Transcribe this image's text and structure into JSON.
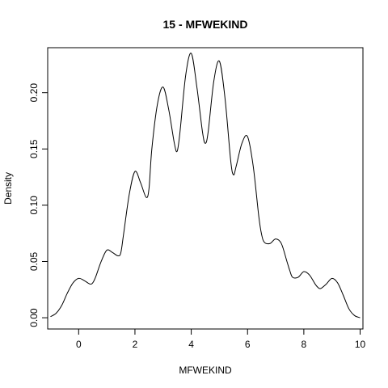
{
  "chart_data": {
    "type": "line",
    "title": "15 - MFWEKIND",
    "xlabel": "MFWEKIND",
    "ylabel": "Density",
    "xlim": [
      -1.1,
      10.1
    ],
    "ylim": [
      -0.01,
      0.24
    ],
    "x_ticks": [
      0,
      2,
      4,
      6,
      8,
      10
    ],
    "x_tick_labels": [
      "0",
      "2",
      "4",
      "6",
      "8",
      "10"
    ],
    "y_ticks": [
      0.0,
      0.05,
      0.1,
      0.15,
      0.2
    ],
    "y_tick_labels": [
      "0.00",
      "0.05",
      "0.10",
      "0.15",
      "0.20"
    ],
    "grid": false,
    "series": [
      {
        "x": [
          -1.0,
          -0.8,
          -0.6,
          -0.4,
          -0.2,
          0.0,
          0.2,
          0.4,
          0.5,
          0.6,
          0.8,
          1.0,
          1.2,
          1.4,
          1.5,
          1.6,
          1.8,
          2.0,
          2.2,
          2.4,
          2.5,
          2.6,
          2.8,
          3.0,
          3.2,
          3.4,
          3.5,
          3.6,
          3.8,
          4.0,
          4.2,
          4.4,
          4.5,
          4.6,
          4.8,
          5.0,
          5.2,
          5.4,
          5.5,
          5.6,
          5.8,
          6.0,
          6.2,
          6.4,
          6.5,
          6.6,
          6.8,
          7.0,
          7.2,
          7.4,
          7.5,
          7.6,
          7.8,
          8.0,
          8.2,
          8.4,
          8.5,
          8.6,
          8.8,
          9.0,
          9.2,
          9.4,
          9.6,
          9.8,
          10.0
        ],
        "y": [
          0.001,
          0.004,
          0.011,
          0.022,
          0.031,
          0.035,
          0.033,
          0.03,
          0.031,
          0.036,
          0.05,
          0.06,
          0.058,
          0.055,
          0.058,
          0.075,
          0.11,
          0.13,
          0.12,
          0.107,
          0.115,
          0.15,
          0.19,
          0.205,
          0.185,
          0.155,
          0.148,
          0.165,
          0.215,
          0.235,
          0.205,
          0.165,
          0.155,
          0.165,
          0.21,
          0.228,
          0.195,
          0.14,
          0.127,
          0.135,
          0.155,
          0.161,
          0.135,
          0.09,
          0.074,
          0.067,
          0.066,
          0.07,
          0.066,
          0.05,
          0.042,
          0.036,
          0.036,
          0.041,
          0.038,
          0.03,
          0.027,
          0.026,
          0.03,
          0.035,
          0.031,
          0.02,
          0.008,
          0.002,
          0.0
        ]
      }
    ]
  }
}
